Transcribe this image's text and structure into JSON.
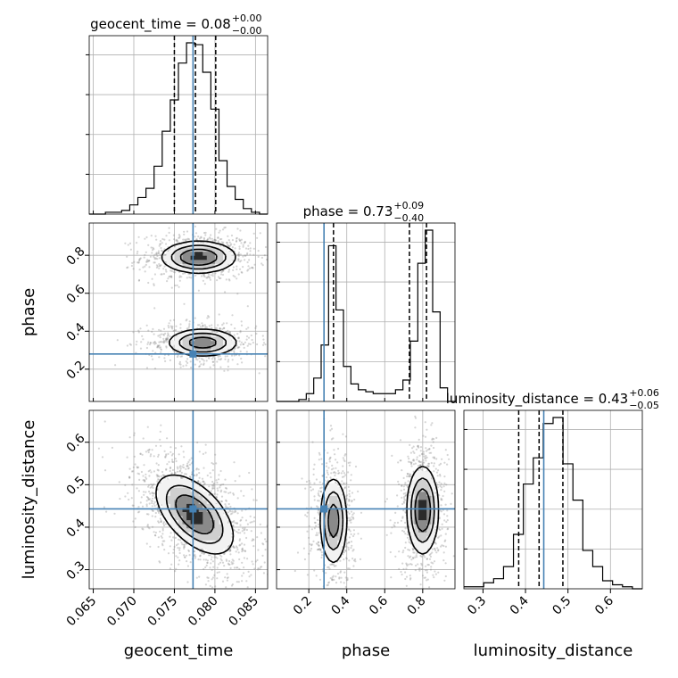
{
  "chart_data": {
    "type": "corner",
    "parameters": [
      "geocent_time",
      "phase",
      "luminosity_distance"
    ],
    "truths": {
      "geocent_time": 0.0773,
      "phase": 0.28,
      "luminosity_distance": 0.443
    },
    "titles": [
      {
        "param": "geocent_time",
        "text": "geocent_time = 0.08",
        "sup": "+0.00",
        "sub": "−0.00"
      },
      {
        "param": "phase",
        "text": "phase = 0.73",
        "sup": "+0.09",
        "sub": "−0.40"
      },
      {
        "param": "luminosity_distance",
        "text": "luminosity_distance = 0.43",
        "sup": "+0.06",
        "sub": "−0.05"
      }
    ],
    "axes": {
      "geocent_time": {
        "range": [
          0.0645,
          0.0865
        ],
        "ticks": [
          "0.065",
          "0.070",
          "0.075",
          "0.080",
          "0.085"
        ],
        "label": "geocent_time"
      },
      "phase": {
        "range": [
          0.03,
          0.97
        ],
        "ticks": [
          "0.2",
          "0.4",
          "0.6",
          "0.8"
        ],
        "label": "phase"
      },
      "luminosity_distance": {
        "range": [
          0.255,
          0.675
        ],
        "ticks": [
          "0.3",
          "0.4",
          "0.5",
          "0.6"
        ],
        "label": "luminosity_distance"
      }
    },
    "histograms": {
      "geocent_time": {
        "edges_range": [
          0.0645,
          0.0865
        ],
        "counts": [
          0.0,
          0.0,
          0.01,
          0.01,
          0.02,
          0.05,
          0.09,
          0.14,
          0.26,
          0.45,
          0.62,
          0.82,
          0.93,
          0.92,
          0.77,
          0.57,
          0.29,
          0.15,
          0.08,
          0.03,
          0.01,
          0.0
        ],
        "quantiles": [
          0.075,
          0.0776,
          0.0801
        ]
      },
      "phase": {
        "edges_range": [
          0.03,
          0.97
        ],
        "counts": [
          0.0,
          0.0,
          0.0,
          0.01,
          0.04,
          0.12,
          0.29,
          0.8,
          0.47,
          0.18,
          0.09,
          0.06,
          0.05,
          0.04,
          0.04,
          0.04,
          0.06,
          0.11,
          0.31,
          0.71,
          0.88,
          0.46,
          0.07,
          0.0
        ],
        "quantiles": [
          0.33,
          0.73,
          0.82
        ]
      },
      "luminosity_distance": {
        "edges_range": [
          0.255,
          0.675
        ],
        "counts": [
          0.01,
          0.01,
          0.03,
          0.05,
          0.11,
          0.27,
          0.52,
          0.65,
          0.82,
          0.85,
          0.62,
          0.44,
          0.19,
          0.11,
          0.04,
          0.02,
          0.01,
          0.0
        ],
        "quantiles": [
          0.384,
          0.432,
          0.488
        ]
      }
    },
    "pairs": [
      {
        "x": "geocent_time",
        "y": "phase",
        "modes": [
          {
            "x": 0.078,
            "y": 0.79,
            "sx": 0.0022,
            "sy": 0.04,
            "w": 0.55
          },
          {
            "x": 0.0785,
            "y": 0.34,
            "sx": 0.0021,
            "sy": 0.035,
            "w": 0.45
          }
        ]
      },
      {
        "x": "geocent_time",
        "y": "luminosity_distance",
        "modes": [
          {
            "x": 0.0775,
            "y": 0.43,
            "sx": 0.0023,
            "sy": 0.045,
            "rho": -0.55,
            "w": 1.0
          }
        ]
      },
      {
        "x": "phase",
        "y": "luminosity_distance",
        "modes": [
          {
            "x": 0.33,
            "y": 0.415,
            "sx": 0.035,
            "sy": 0.05,
            "w": 0.45
          },
          {
            "x": 0.8,
            "y": 0.44,
            "sx": 0.04,
            "sy": 0.05,
            "w": 0.55
          }
        ]
      }
    ]
  }
}
